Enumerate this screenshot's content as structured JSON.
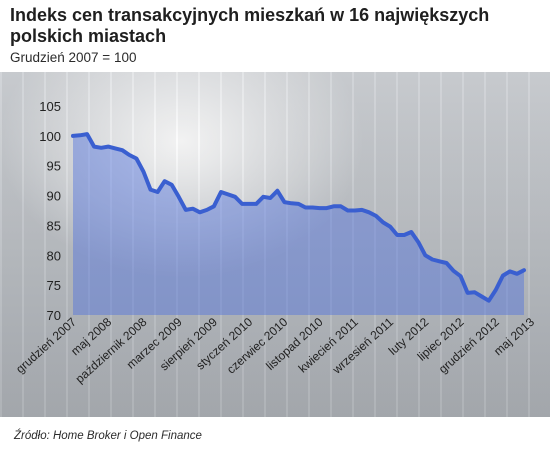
{
  "header": {
    "title": "Indeks cen transakcyjnych mieszkań w 16 największych polskich miastach",
    "subtitle": "Grudzień 2007 = 100"
  },
  "footer": {
    "source": "Źródło: Home Broker i Open Finance"
  },
  "chart_data": {
    "type": "line",
    "title": "Indeks cen transakcyjnych mieszkań w 16 największych polskich miastach",
    "subtitle": "Grudzień 2007 = 100",
    "ylim": [
      70,
      105
    ],
    "yticks": [
      70,
      75,
      80,
      85,
      90,
      95,
      100,
      105
    ],
    "xtick_labels": [
      "grudzień 2007",
      "maj 2008",
      "październik 2008",
      "marzec 2009",
      "sierpień 2009",
      "styczeń 2010",
      "czerwiec 2010",
      "listopad 2010",
      "kwiecień 2011",
      "wrzesień 2011",
      "luty 2012",
      "lipiec 2012",
      "grudzień 2012",
      "maj 2013"
    ],
    "grid": false,
    "colors": {
      "line": "#3a5fd0",
      "fill": "#4f72de"
    },
    "series": [
      {
        "values": [
          100,
          100.1,
          100.3,
          98.2,
          98.0,
          98.2,
          97.9,
          97.6,
          96.8,
          96.2,
          94.0,
          91.0,
          90.6,
          92.4,
          91.8,
          89.8,
          87.6,
          87.8,
          87.2,
          87.6,
          88.2,
          90.6,
          90.2,
          89.8,
          88.6,
          88.6,
          88.6,
          89.8,
          89.6,
          90.8,
          88.9,
          88.7,
          88.6,
          88.0,
          88.0,
          87.9,
          87.9,
          88.2,
          88.2,
          87.5,
          87.5,
          87.6,
          87.2,
          86.6,
          85.5,
          84.8,
          83.4,
          83.4,
          83.9,
          82.2,
          80.0,
          79.3,
          79.0,
          78.7,
          77.4,
          76.5,
          73.7,
          73.8,
          73.1,
          72.4,
          74.2,
          76.6,
          77.3,
          76.9,
          77.5
        ]
      }
    ]
  }
}
